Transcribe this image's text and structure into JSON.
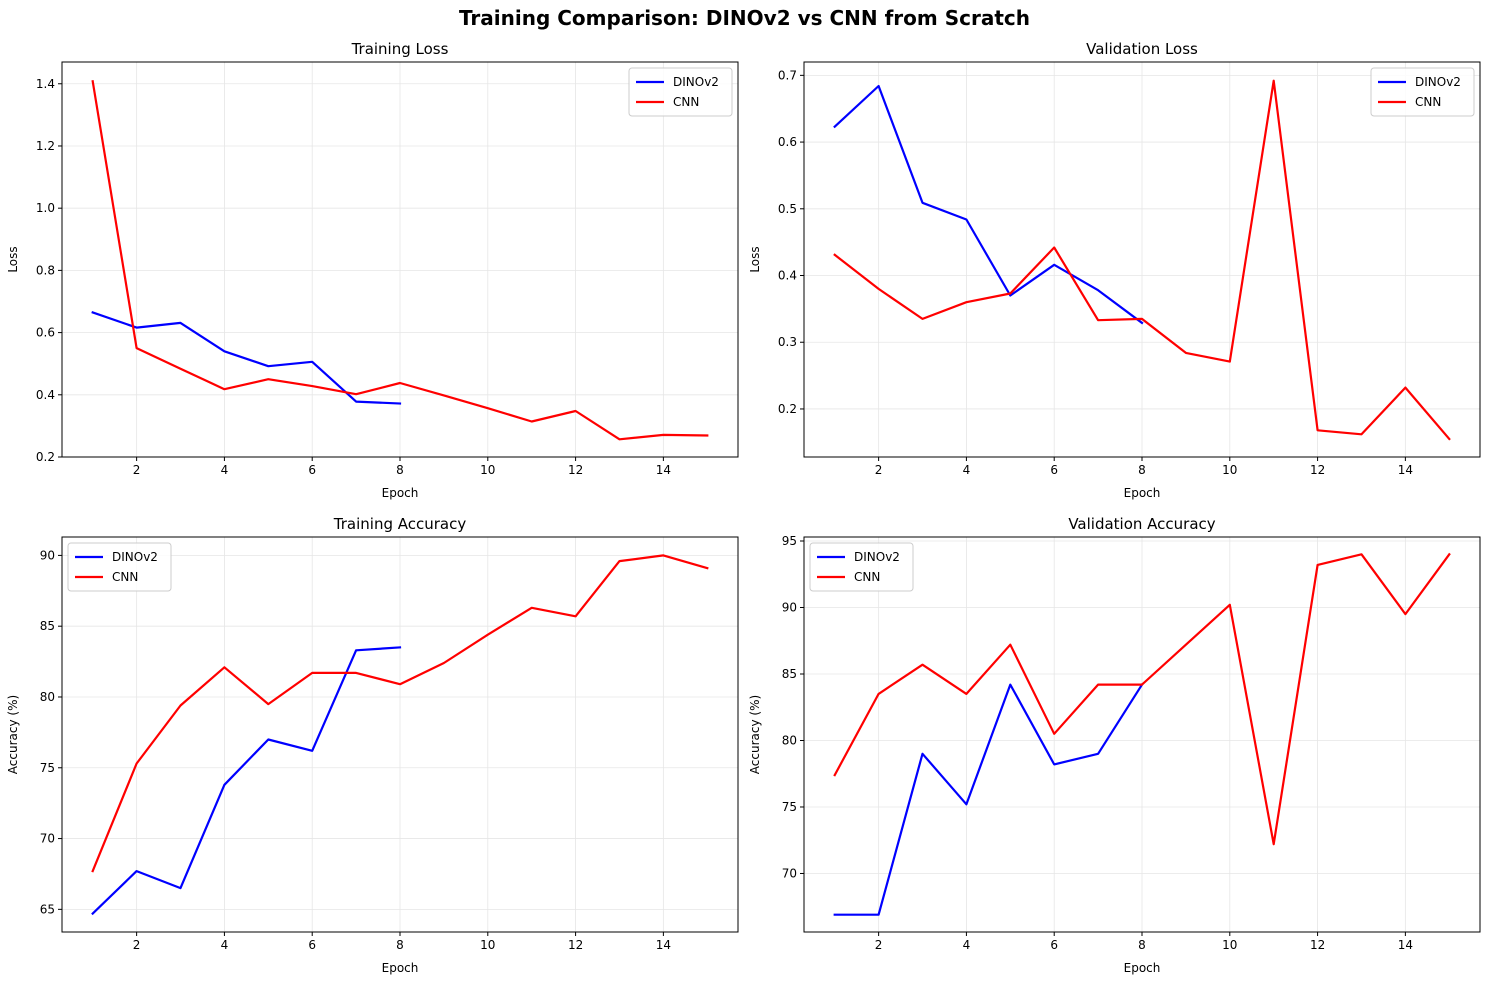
{
  "figure": {
    "title": "Training Comparison: DINOv2 vs CNN from Scratch"
  },
  "colors": {
    "dinov2": "#0000ff",
    "cnn": "#ff0000",
    "grid": "#e6e6e6",
    "axes": "#000000"
  },
  "chart_data": [
    {
      "type": "line",
      "title": "Training Loss",
      "xlabel": "Epoch",
      "ylabel": "Loss",
      "xlim": [
        0.3,
        15.7
      ],
      "ylim": [
        0.2,
        1.47
      ],
      "xticks": [
        2,
        4,
        6,
        8,
        10,
        12,
        14
      ],
      "yticks": [
        0.2,
        0.4,
        0.6,
        0.8,
        1.0,
        1.2,
        1.4
      ],
      "ytick_labels": [
        "0.2",
        "0.4",
        "0.6",
        "0.8",
        "1.0",
        "1.2",
        "1.4"
      ],
      "grid": true,
      "legend": "top-right",
      "series": [
        {
          "name": "DINOv2",
          "color": "#0000ff",
          "x": [
            1,
            2,
            3,
            4,
            5,
            6,
            7,
            8
          ],
          "values": [
            0.665,
            0.616,
            0.631,
            0.54,
            0.492,
            0.506,
            0.378,
            0.372
          ]
        },
        {
          "name": "CNN",
          "color": "#ff0000",
          "x": [
            1,
            2,
            3,
            4,
            5,
            6,
            7,
            8,
            9,
            10,
            11,
            12,
            13,
            14,
            15
          ],
          "values": [
            1.408,
            0.55,
            0.484,
            0.418,
            0.45,
            0.428,
            0.402,
            0.438,
            0.398,
            0.357,
            0.314,
            0.348,
            0.257,
            0.271,
            0.269
          ]
        }
      ]
    },
    {
      "type": "line",
      "title": "Validation Loss",
      "xlabel": "Epoch",
      "ylabel": "Loss",
      "xlim": [
        0.3,
        15.7
      ],
      "ylim": [
        0.128,
        0.72
      ],
      "xticks": [
        2,
        4,
        6,
        8,
        10,
        12,
        14
      ],
      "yticks": [
        0.2,
        0.3,
        0.4,
        0.5,
        0.6,
        0.7
      ],
      "ytick_labels": [
        "0.2",
        "0.3",
        "0.4",
        "0.5",
        "0.6",
        "0.7"
      ],
      "grid": true,
      "legend": "top-right",
      "series": [
        {
          "name": "DINOv2",
          "color": "#0000ff",
          "x": [
            1,
            2,
            3,
            4,
            5,
            6,
            7,
            8
          ],
          "values": [
            0.623,
            0.684,
            0.509,
            0.484,
            0.37,
            0.416,
            0.378,
            0.329
          ]
        },
        {
          "name": "CNN",
          "color": "#ff0000",
          "x": [
            1,
            2,
            3,
            4,
            5,
            6,
            7,
            8,
            9,
            10,
            11,
            12,
            13,
            14,
            15
          ],
          "values": [
            0.431,
            0.38,
            0.335,
            0.36,
            0.373,
            0.442,
            0.333,
            0.335,
            0.284,
            0.271,
            0.692,
            0.168,
            0.162,
            0.232,
            0.155
          ]
        }
      ]
    },
    {
      "type": "line",
      "title": "Training Accuracy",
      "xlabel": "Epoch",
      "ylabel": "Accuracy (%)",
      "xlim": [
        0.3,
        15.7
      ],
      "ylim": [
        63.4,
        91.3
      ],
      "xticks": [
        2,
        4,
        6,
        8,
        10,
        12,
        14
      ],
      "yticks": [
        65,
        70,
        75,
        80,
        85,
        90
      ],
      "ytick_labels": [
        "65",
        "70",
        "75",
        "80",
        "85",
        "90"
      ],
      "grid": true,
      "legend": "top-left",
      "series": [
        {
          "name": "DINOv2",
          "color": "#0000ff",
          "x": [
            1,
            2,
            3,
            4,
            5,
            6,
            7,
            8
          ],
          "values": [
            64.7,
            67.7,
            66.5,
            73.8,
            77.0,
            76.2,
            83.3,
            83.5
          ]
        },
        {
          "name": "CNN",
          "color": "#ff0000",
          "x": [
            1,
            2,
            3,
            4,
            5,
            6,
            7,
            8,
            9,
            10,
            11,
            12,
            13,
            14,
            15
          ],
          "values": [
            67.7,
            75.3,
            79.4,
            82.1,
            79.5,
            81.7,
            81.7,
            80.9,
            82.4,
            84.4,
            86.3,
            85.7,
            89.6,
            90.0,
            89.1
          ]
        }
      ]
    },
    {
      "type": "line",
      "title": "Validation Accuracy",
      "xlabel": "Epoch",
      "ylabel": "Accuracy (%)",
      "xlim": [
        0.3,
        15.7
      ],
      "ylim": [
        65.6,
        95.3
      ],
      "xticks": [
        2,
        4,
        6,
        8,
        10,
        12,
        14
      ],
      "yticks": [
        70,
        75,
        80,
        85,
        90,
        95
      ],
      "ytick_labels": [
        "70",
        "75",
        "80",
        "85",
        "90",
        "95"
      ],
      "grid": true,
      "legend": "top-left",
      "series": [
        {
          "name": "DINOv2",
          "color": "#0000ff",
          "x": [
            1,
            2,
            3,
            4,
            5,
            6,
            7,
            8
          ],
          "values": [
            66.9,
            66.9,
            79.0,
            75.2,
            84.2,
            78.2,
            79.0,
            84.2
          ]
        },
        {
          "name": "CNN",
          "color": "#ff0000",
          "x": [
            1,
            2,
            3,
            4,
            5,
            6,
            7,
            8,
            9,
            10,
            11,
            12,
            13,
            14,
            15
          ],
          "values": [
            77.4,
            83.5,
            85.7,
            83.5,
            87.2,
            80.5,
            84.2,
            84.2,
            87.2,
            90.2,
            72.2,
            93.2,
            94.0,
            89.5,
            94.0
          ]
        }
      ]
    }
  ]
}
